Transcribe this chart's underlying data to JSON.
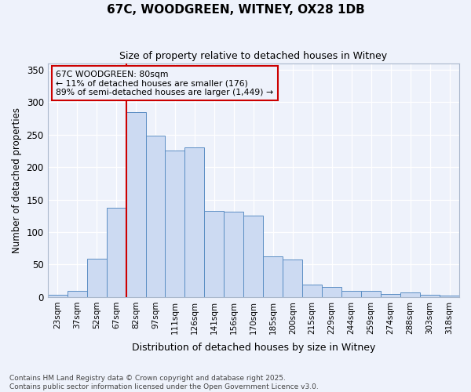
{
  "title": "67C, WOODGREEN, WITNEY, OX28 1DB",
  "subtitle": "Size of property relative to detached houses in Witney",
  "xlabel": "Distribution of detached houses by size in Witney",
  "ylabel": "Number of detached properties",
  "categories": [
    "23sqm",
    "37sqm",
    "52sqm",
    "67sqm",
    "82sqm",
    "97sqm",
    "111sqm",
    "126sqm",
    "141sqm",
    "156sqm",
    "170sqm",
    "185sqm",
    "200sqm",
    "215sqm",
    "229sqm",
    "244sqm",
    "259sqm",
    "274sqm",
    "288sqm",
    "303sqm",
    "318sqm"
  ],
  "values": [
    3,
    10,
    59,
    137,
    285,
    248,
    225,
    230,
    133,
    132,
    125,
    63,
    58,
    19,
    16,
    9,
    9,
    5,
    7,
    3,
    2
  ],
  "bar_color": "#ccdaf2",
  "bar_edge_color": "#5b8ec4",
  "background_color": "#eef2fb",
  "grid_color": "#ffffff",
  "vline_color": "#cc0000",
  "annotation_text": "67C WOODGREEN: 80sqm\n← 11% of detached houses are smaller (176)\n89% of semi-detached houses are larger (1,449) →",
  "annotation_box_color": "#cc0000",
  "ylim": [
    0,
    360
  ],
  "yticks": [
    0,
    50,
    100,
    150,
    200,
    250,
    300,
    350
  ],
  "footer": "Contains HM Land Registry data © Crown copyright and database right 2025.\nContains public sector information licensed under the Open Government Licence v3.0."
}
